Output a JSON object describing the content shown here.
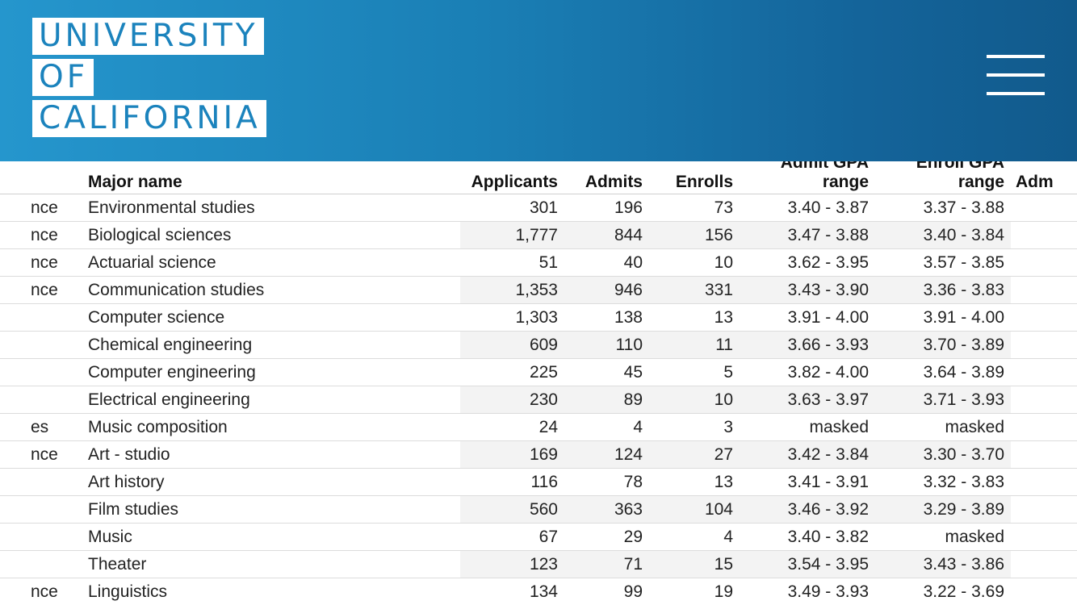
{
  "header": {
    "logo_lines": [
      "UNIVERSITY",
      "OF",
      "CALIFORNIA"
    ],
    "menu_icon": "hamburger-menu-icon",
    "colors": {
      "gradient_start": "#2596cd",
      "gradient_end": "#115a8c",
      "logo_text": "#1b83bd"
    }
  },
  "table": {
    "columns": {
      "discipline": "",
      "major": "Major name",
      "applicants": "Applicants",
      "admits": "Admits",
      "enrolls": "Enrolls",
      "admit_gpa_line1": "Admit GPA",
      "admit_gpa_line2": "range",
      "enroll_gpa_line1": "Enroll GPA",
      "enroll_gpa_line2": "range",
      "more": "Adm"
    },
    "rows": [
      {
        "discipline": "nce",
        "major": "Environmental studies",
        "applicants": "301",
        "admits": "196",
        "enrolls": "73",
        "admit_gpa": "3.40 - 3.87",
        "enroll_gpa": "3.37 - 3.88"
      },
      {
        "discipline": "nce",
        "major": "Biological sciences",
        "applicants": "1,777",
        "admits": "844",
        "enrolls": "156",
        "admit_gpa": "3.47 - 3.88",
        "enroll_gpa": "3.40 - 3.84"
      },
      {
        "discipline": "nce",
        "major": "Actuarial science",
        "applicants": "51",
        "admits": "40",
        "enrolls": "10",
        "admit_gpa": "3.62 - 3.95",
        "enroll_gpa": "3.57 - 3.85"
      },
      {
        "discipline": "nce",
        "major": "Communication studies",
        "applicants": "1,353",
        "admits": "946",
        "enrolls": "331",
        "admit_gpa": "3.43 - 3.90",
        "enroll_gpa": "3.36 - 3.83"
      },
      {
        "discipline": "",
        "major": "Computer science",
        "applicants": "1,303",
        "admits": "138",
        "enrolls": "13",
        "admit_gpa": "3.91 - 4.00",
        "enroll_gpa": "3.91 - 4.00"
      },
      {
        "discipline": "",
        "major": "Chemical engineering",
        "applicants": "609",
        "admits": "110",
        "enrolls": "11",
        "admit_gpa": "3.66 - 3.93",
        "enroll_gpa": "3.70 - 3.89"
      },
      {
        "discipline": "",
        "major": "Computer engineering",
        "applicants": "225",
        "admits": "45",
        "enrolls": "5",
        "admit_gpa": "3.82 - 4.00",
        "enroll_gpa": "3.64 - 3.89"
      },
      {
        "discipline": "",
        "major": "Electrical engineering",
        "applicants": "230",
        "admits": "89",
        "enrolls": "10",
        "admit_gpa": "3.63 - 3.97",
        "enroll_gpa": "3.71 - 3.93"
      },
      {
        "discipline": "es",
        "major": "Music composition",
        "applicants": "24",
        "admits": "4",
        "enrolls": "3",
        "admit_gpa": "masked",
        "enroll_gpa": "masked"
      },
      {
        "discipline": "nce",
        "major": "Art - studio",
        "applicants": "169",
        "admits": "124",
        "enrolls": "27",
        "admit_gpa": "3.42 - 3.84",
        "enroll_gpa": "3.30 - 3.70"
      },
      {
        "discipline": "",
        "major": "Art history",
        "applicants": "116",
        "admits": "78",
        "enrolls": "13",
        "admit_gpa": "3.41 - 3.91",
        "enroll_gpa": "3.32 - 3.83"
      },
      {
        "discipline": "",
        "major": "Film studies",
        "applicants": "560",
        "admits": "363",
        "enrolls": "104",
        "admit_gpa": "3.46 - 3.92",
        "enroll_gpa": "3.29 - 3.89"
      },
      {
        "discipline": "",
        "major": "Music",
        "applicants": "67",
        "admits": "29",
        "enrolls": "4",
        "admit_gpa": "3.40 - 3.82",
        "enroll_gpa": "masked"
      },
      {
        "discipline": "",
        "major": "Theater",
        "applicants": "123",
        "admits": "71",
        "enrolls": "15",
        "admit_gpa": "3.54 - 3.95",
        "enroll_gpa": "3.43 - 3.86"
      },
      {
        "discipline": "nce",
        "major": "Linguistics",
        "applicants": "134",
        "admits": "99",
        "enrolls": "19",
        "admit_gpa": "3.49 - 3.93",
        "enroll_gpa": "3.22 - 3.69"
      }
    ]
  }
}
